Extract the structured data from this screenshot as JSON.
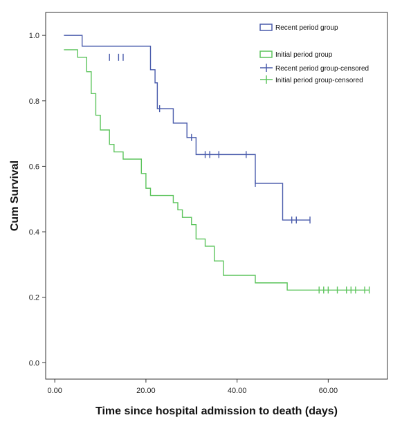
{
  "chart_data": {
    "type": "line",
    "subtype": "kaplan-meier step",
    "title": "",
    "xlabel": "Time since hospital admission to death (days)",
    "ylabel": "Cum Survival",
    "xlim": [
      -2,
      73
    ],
    "ylim": [
      -0.05,
      1.07
    ],
    "x_ticks": [
      0,
      20,
      40,
      60
    ],
    "x_tick_labels": [
      "0.00",
      "20.00",
      "40.00",
      "60.00"
    ],
    "y_ticks": [
      0,
      0.2,
      0.4,
      0.6,
      0.8,
      1.0
    ],
    "y_tick_labels": [
      "0.0",
      "0.2",
      "0.4",
      "0.6",
      "0.8",
      "1.0"
    ],
    "grid": false,
    "legend_position": "top-right",
    "legend": [
      "Recent period group",
      "Initial period group",
      "Recent period group-censored",
      "Initial period group-censored"
    ],
    "series": [
      {
        "name": "Recent period group",
        "color": "#4a5cac",
        "steps": [
          [
            2,
            1.0
          ],
          [
            6,
            0.967
          ],
          [
            21,
            0.895
          ],
          [
            22,
            0.855
          ],
          [
            22.5,
            0.776
          ],
          [
            26,
            0.732
          ],
          [
            29,
            0.688
          ],
          [
            31,
            0.636
          ],
          [
            44,
            0.548
          ],
          [
            50,
            0.436
          ],
          [
            56,
            0.436
          ]
        ],
        "censored": [
          [
            12,
            0.933
          ],
          [
            14,
            0.933
          ],
          [
            15,
            0.933
          ],
          [
            23,
            0.776
          ],
          [
            30,
            0.688
          ],
          [
            33,
            0.636
          ],
          [
            34,
            0.636
          ],
          [
            36,
            0.636
          ],
          [
            42,
            0.636
          ],
          [
            44,
            0.548
          ],
          [
            52,
            0.436
          ],
          [
            53,
            0.436
          ],
          [
            56,
            0.436
          ]
        ]
      },
      {
        "name": "Initial period group",
        "color": "#5cc45c",
        "steps": [
          [
            2,
            0.956
          ],
          [
            5,
            0.933
          ],
          [
            7,
            0.889
          ],
          [
            8,
            0.822
          ],
          [
            9,
            0.756
          ],
          [
            10,
            0.711
          ],
          [
            12,
            0.667
          ],
          [
            13,
            0.644
          ],
          [
            15,
            0.622
          ],
          [
            19,
            0.578
          ],
          [
            20,
            0.533
          ],
          [
            21,
            0.511
          ],
          [
            26,
            0.489
          ],
          [
            27,
            0.467
          ],
          [
            28,
            0.444
          ],
          [
            30,
            0.422
          ],
          [
            31,
            0.378
          ],
          [
            33,
            0.356
          ],
          [
            35,
            0.311
          ],
          [
            37,
            0.267
          ],
          [
            44,
            0.244
          ],
          [
            51,
            0.222
          ],
          [
            69,
            0.222
          ]
        ],
        "censored": [
          [
            58,
            0.222
          ],
          [
            59,
            0.222
          ],
          [
            60,
            0.222
          ],
          [
            62,
            0.222
          ],
          [
            64,
            0.222
          ],
          [
            65,
            0.222
          ],
          [
            66,
            0.222
          ],
          [
            68,
            0.222
          ],
          [
            69,
            0.222
          ]
        ]
      }
    ]
  }
}
